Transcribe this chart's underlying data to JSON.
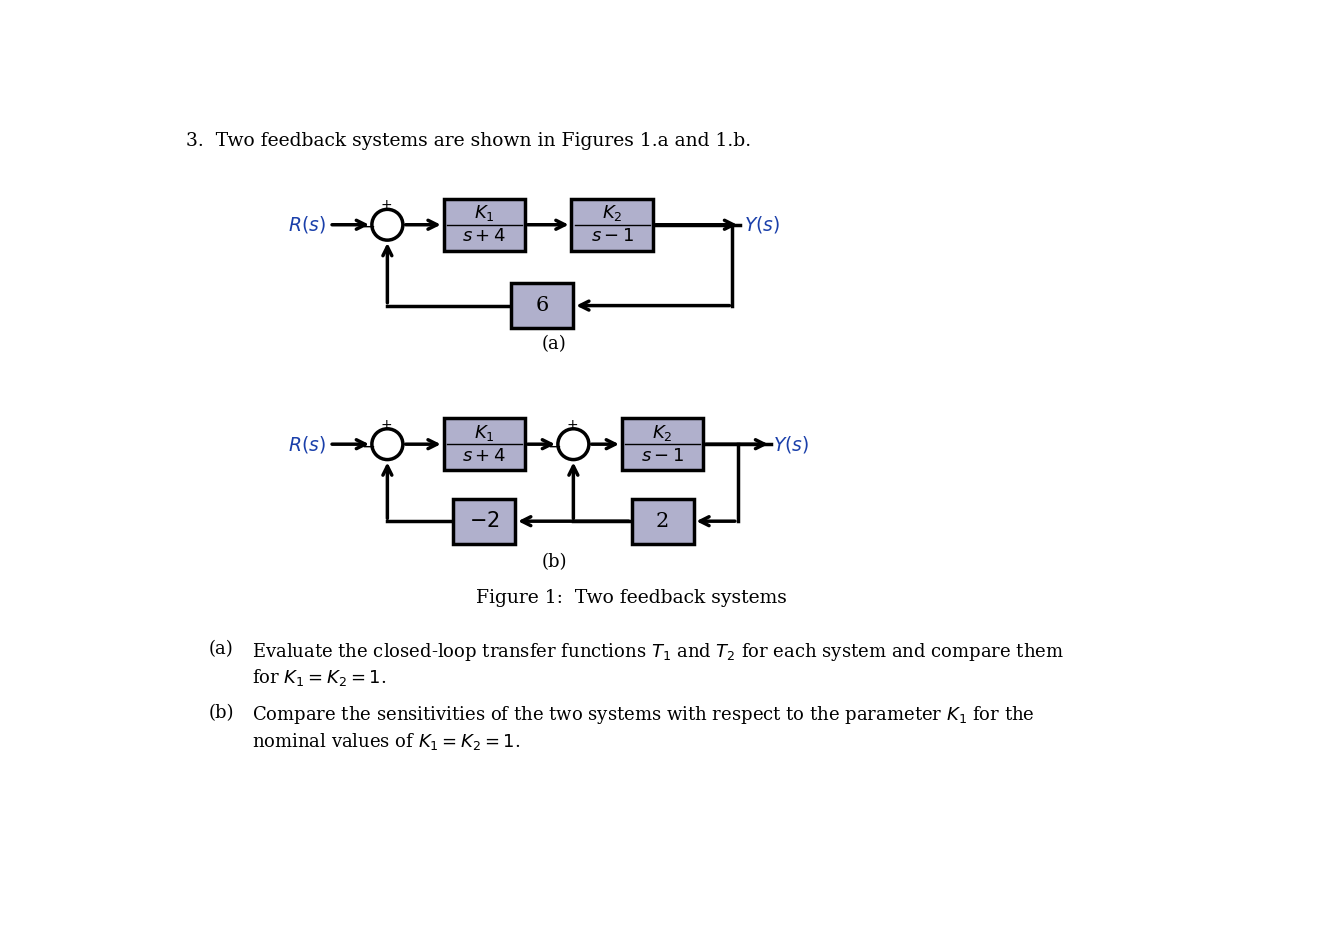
{
  "bg_color": "#ffffff",
  "box_fill": "#b0b0cc",
  "box_edge": "#000000",
  "line_color": "#000000",
  "text_color": "#000000",
  "italic_color": "#1a3faa",
  "title_text": "3.  Two feedback systems are shown in Figures 1.a and 1.b.",
  "fig_caption": "Figure 1:  Two feedback systems",
  "label_a": "(a)",
  "label_b": "(b)"
}
